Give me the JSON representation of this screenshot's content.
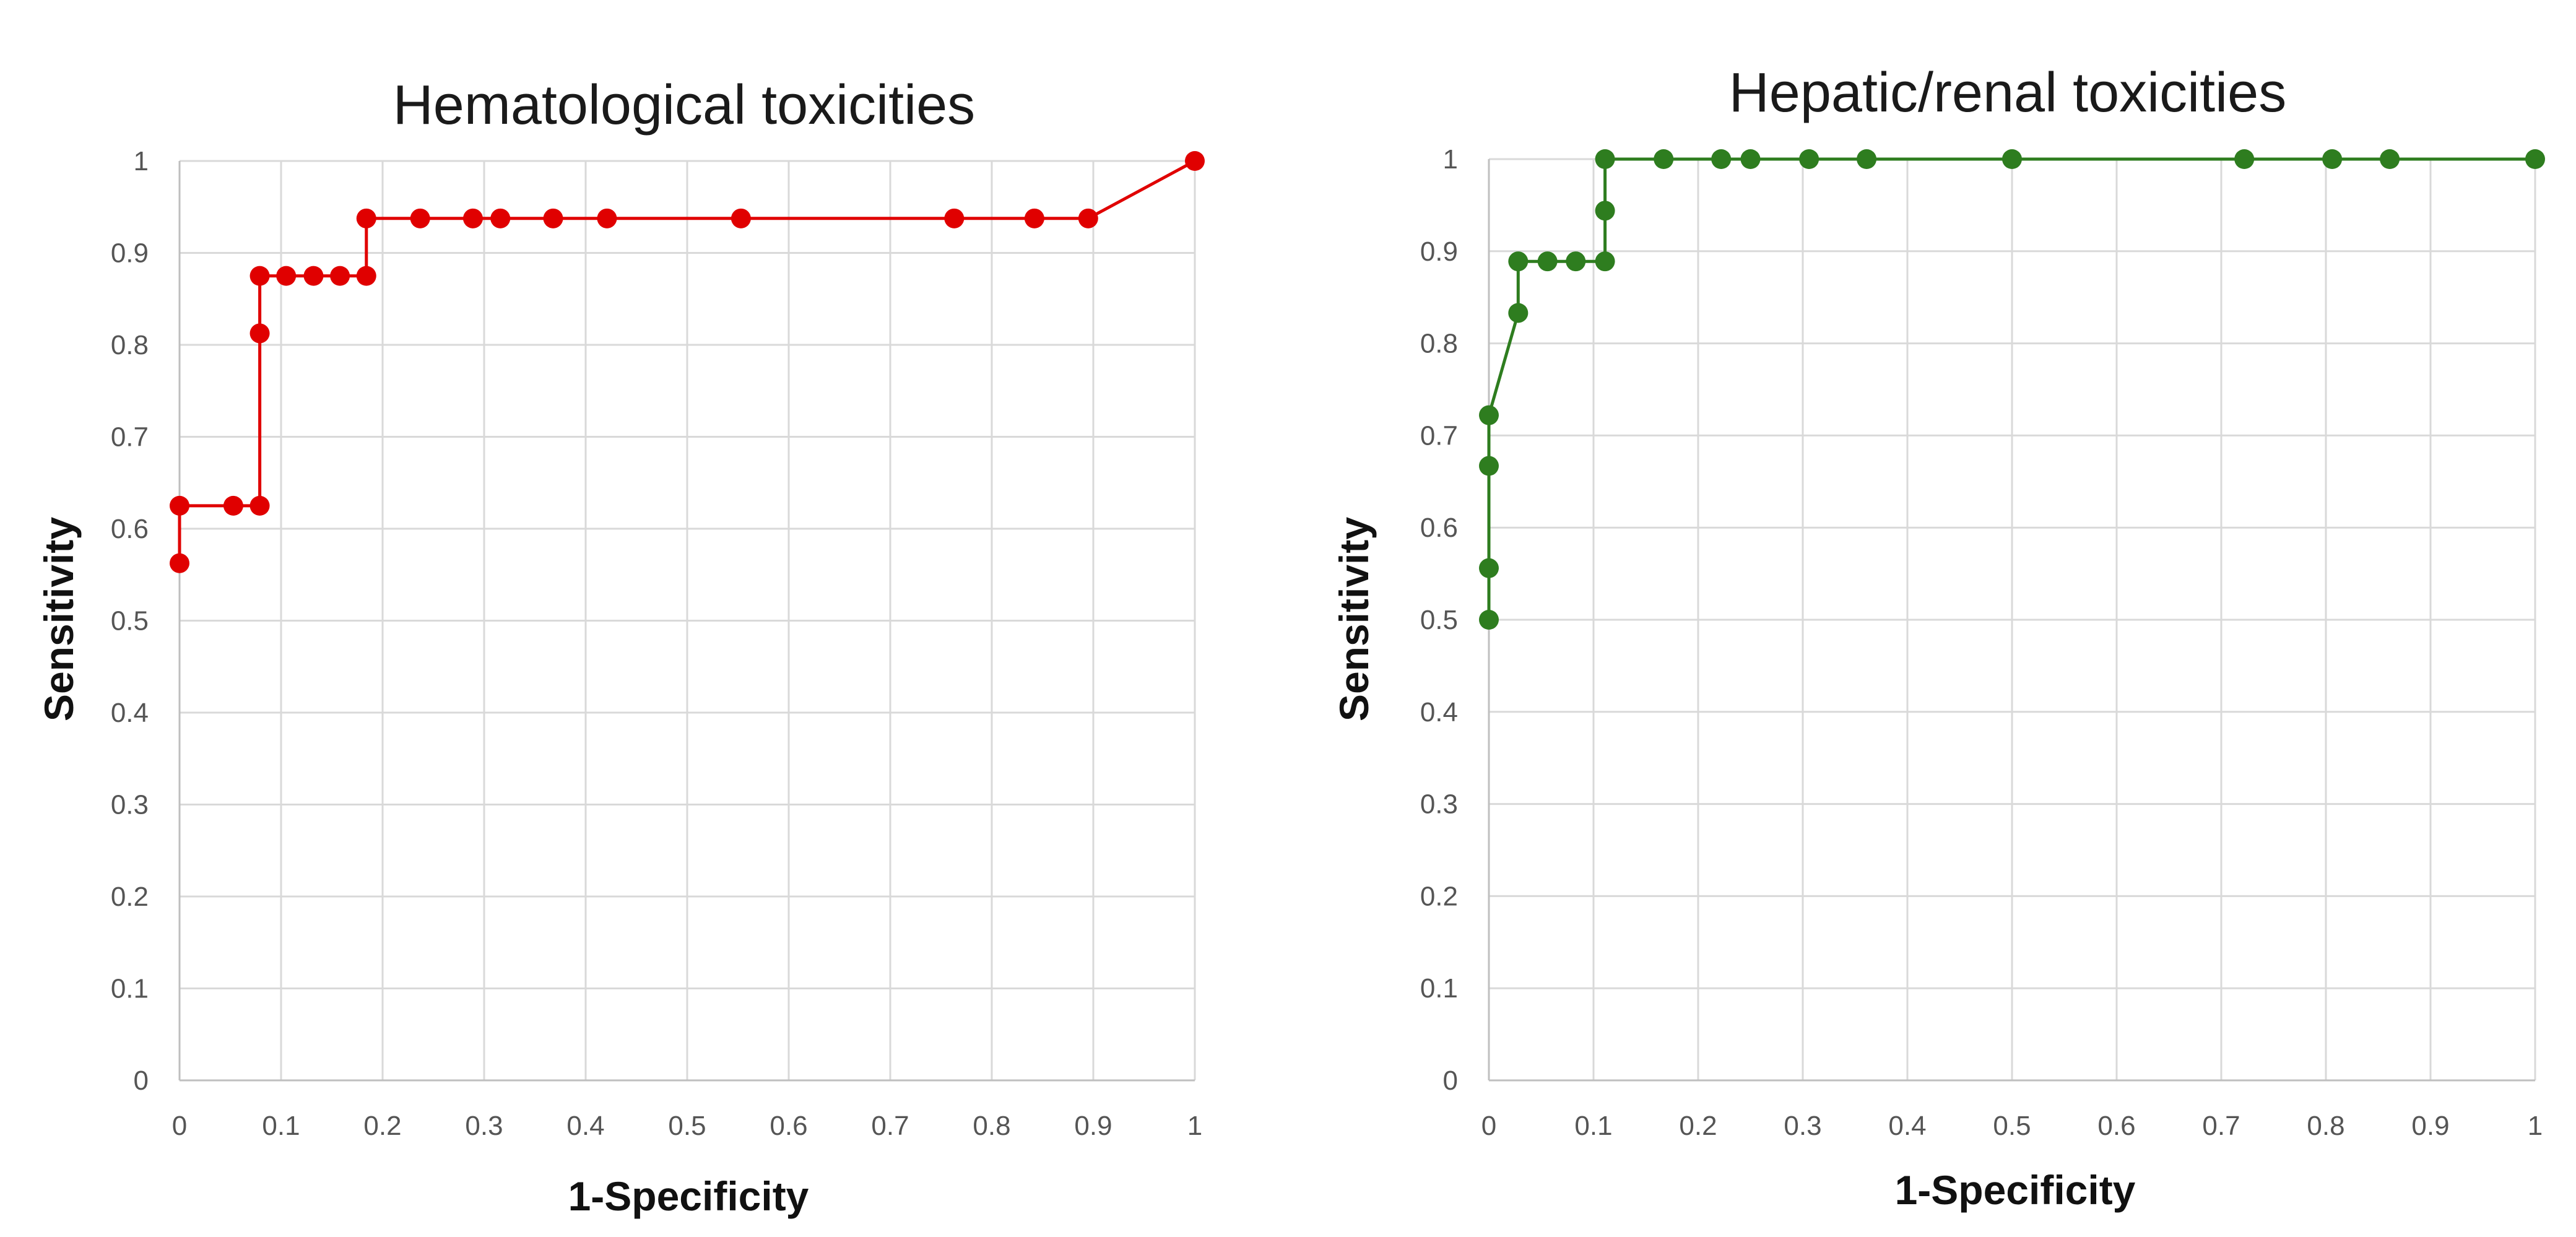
{
  "chart_data": [
    {
      "type": "line",
      "title": "Hematological toxicities",
      "xlabel": "1-Specificity",
      "ylabel": "Sensitivity",
      "xlim": [
        0,
        1
      ],
      "ylim": [
        0,
        1
      ],
      "x_ticks": [
        "0",
        "0.1",
        "0.2",
        "0.3",
        "0.4",
        "0.5",
        "0.6",
        "0.7",
        "0.8",
        "0.9",
        "1"
      ],
      "y_ticks": [
        "0",
        "0.1",
        "0.2",
        "0.3",
        "0.4",
        "0.5",
        "0.6",
        "0.7",
        "0.8",
        "0.9",
        "1"
      ],
      "grid": true,
      "color": "#e00000",
      "series": [
        {
          "x": [
            0,
            0,
            0.053,
            0.079,
            0.079,
            0.079,
            0.105,
            0.132,
            0.158,
            0.184,
            0.184,
            0.237,
            0.289,
            0.316,
            0.368,
            0.421,
            0.553,
            0.763,
            0.842,
            0.895,
            1
          ],
          "y": [
            0.5625,
            0.625,
            0.625,
            0.625,
            0.8125,
            0.875,
            0.875,
            0.875,
            0.875,
            0.875,
            0.9375,
            0.9375,
            0.9375,
            0.9375,
            0.9375,
            0.9375,
            0.9375,
            0.9375,
            0.9375,
            0.9375,
            1
          ]
        }
      ]
    },
    {
      "type": "line",
      "title": "Hepatic/renal toxicities",
      "xlabel": "1-Specificity",
      "ylabel": "Sensitivity",
      "xlim": [
        0,
        1
      ],
      "ylim": [
        0,
        1
      ],
      "x_ticks": [
        "0",
        "0.1",
        "0.2",
        "0.3",
        "0.4",
        "0.5",
        "0.6",
        "0.7",
        "0.8",
        "0.9",
        "1"
      ],
      "y_ticks": [
        "0",
        "0.1",
        "0.2",
        "0.3",
        "0.4",
        "0.5",
        "0.6",
        "0.7",
        "0.8",
        "0.9",
        "1"
      ],
      "grid": true,
      "color": "#2e7d1f",
      "series": [
        {
          "x": [
            0,
            0,
            0,
            0,
            0.028,
            0.028,
            0.056,
            0.083,
            0.111,
            0.111,
            0.111,
            0.167,
            0.222,
            0.25,
            0.306,
            0.361,
            0.5,
            0.722,
            0.806,
            0.861,
            1
          ],
          "y": [
            0.5,
            0.556,
            0.667,
            0.722,
            0.833,
            0.889,
            0.889,
            0.889,
            0.889,
            0.944,
            1,
            1,
            1,
            1,
            1,
            1,
            1,
            1,
            1,
            1,
            1
          ]
        }
      ]
    }
  ]
}
